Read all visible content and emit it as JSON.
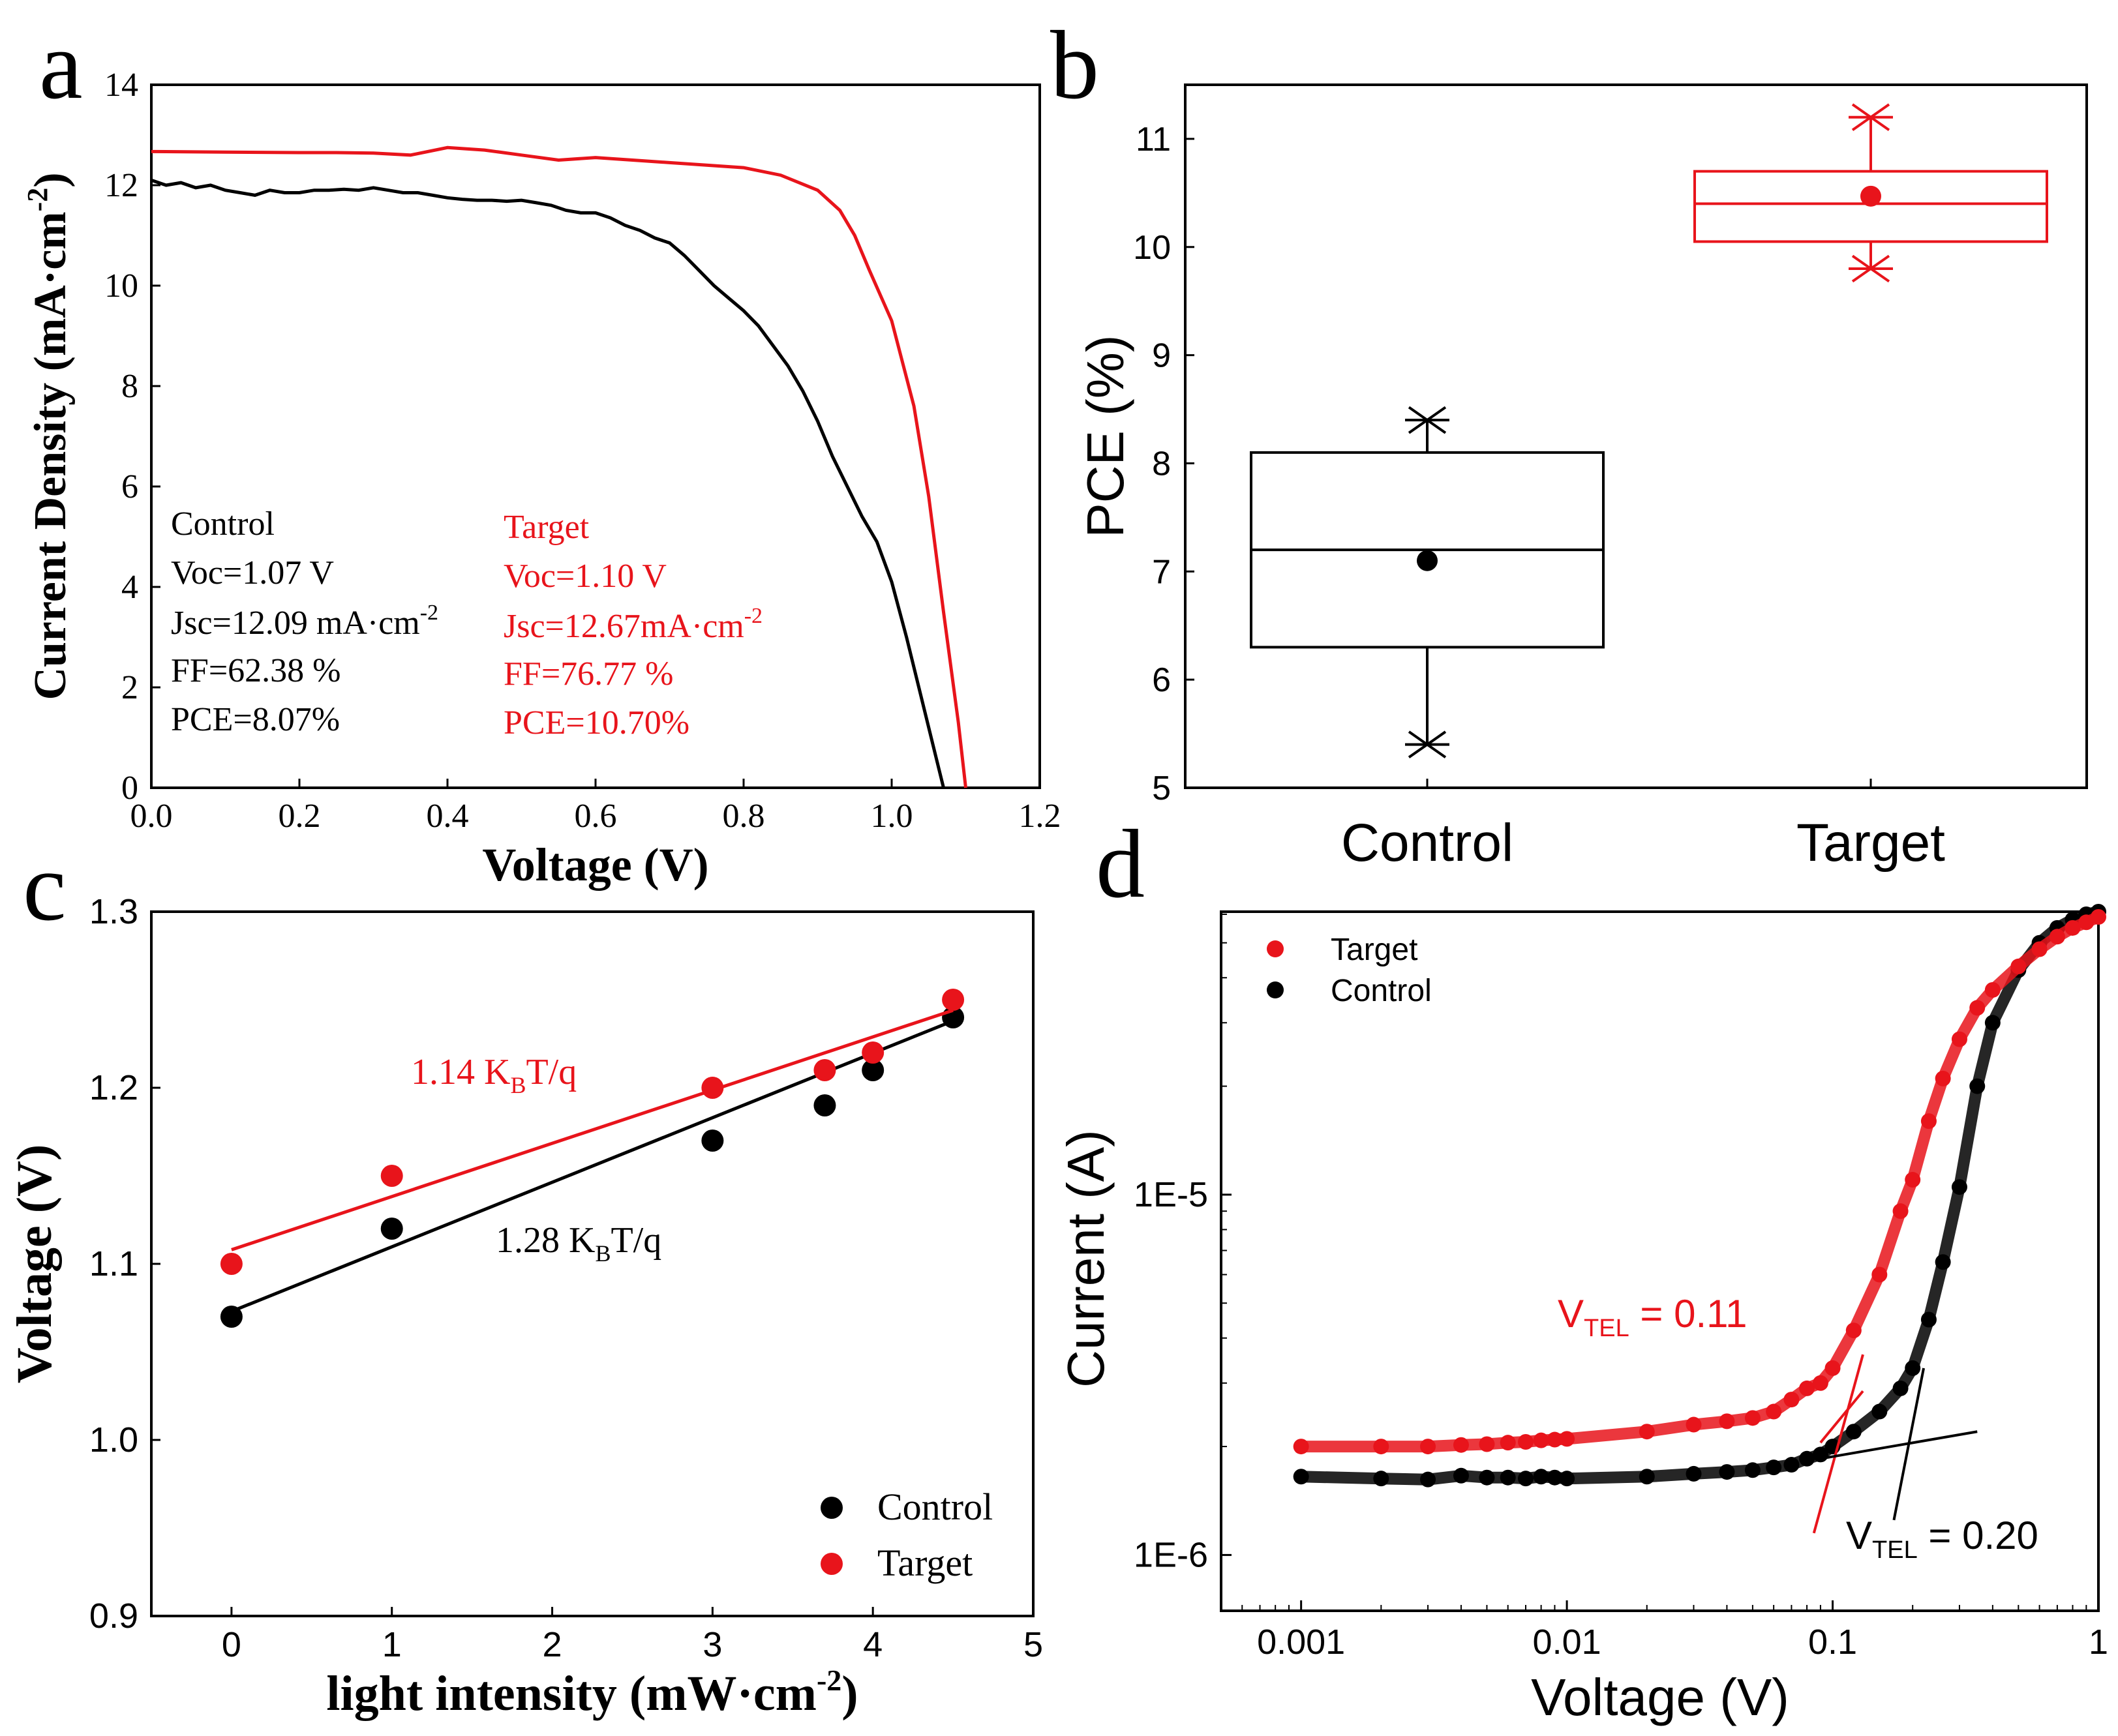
{
  "colors": {
    "control": "#000000",
    "target": "#e8141b"
  },
  "chart_data": [
    {
      "panel": "a",
      "type": "line",
      "xlabel": "Voltage (V)",
      "ylabel": "Current Density (mA·cm-2)",
      "ylabel_main": "Current Density (mA·cm",
      "ylabel_sup": "-2",
      "ylabel_close": ")",
      "xlim": [
        0.0,
        1.2
      ],
      "ylim": [
        0,
        14
      ],
      "xticks": [
        "0.0",
        "0.2",
        "0.4",
        "0.6",
        "0.8",
        "1.0",
        "1.2"
      ],
      "yticks": [
        "0",
        "2",
        "4",
        "6",
        "8",
        "10",
        "12",
        "14"
      ],
      "series": [
        {
          "name": "Control",
          "x": [
            0,
            0.02,
            0.04,
            0.06,
            0.08,
            0.1,
            0.12,
            0.14,
            0.16,
            0.18,
            0.2,
            0.22,
            0.24,
            0.26,
            0.28,
            0.3,
            0.32,
            0.34,
            0.36,
            0.38,
            0.4,
            0.42,
            0.44,
            0.46,
            0.48,
            0.5,
            0.52,
            0.54,
            0.56,
            0.58,
            0.6,
            0.62,
            0.64,
            0.66,
            0.68,
            0.7,
            0.72,
            0.74,
            0.76,
            0.78,
            0.8,
            0.82,
            0.84,
            0.86,
            0.88,
            0.9,
            0.92,
            0.94,
            0.96,
            0.98,
            1.0,
            1.02,
            1.04,
            1.06,
            1.07
          ],
          "y": [
            12.1,
            12.0,
            12.05,
            11.95,
            12.0,
            11.9,
            11.85,
            11.8,
            11.9,
            11.85,
            11.85,
            11.9,
            11.9,
            11.92,
            11.9,
            11.95,
            11.9,
            11.85,
            11.85,
            11.8,
            11.75,
            11.72,
            11.7,
            11.7,
            11.68,
            11.7,
            11.65,
            11.6,
            11.5,
            11.45,
            11.45,
            11.35,
            11.2,
            11.1,
            10.95,
            10.85,
            10.6,
            10.3,
            10.0,
            9.75,
            9.5,
            9.2,
            8.8,
            8.4,
            7.9,
            7.3,
            6.6,
            6.0,
            5.4,
            4.9,
            4.1,
            3.0,
            1.8,
            0.6,
            0.0
          ]
        },
        {
          "name": "Target",
          "x": [
            0,
            0.1,
            0.2,
            0.25,
            0.3,
            0.35,
            0.4,
            0.45,
            0.5,
            0.55,
            0.6,
            0.65,
            0.7,
            0.75,
            0.8,
            0.85,
            0.9,
            0.93,
            0.95,
            0.97,
            1.0,
            1.03,
            1.05,
            1.07,
            1.09,
            1.1
          ],
          "y": [
            12.67,
            12.66,
            12.65,
            12.65,
            12.64,
            12.6,
            12.75,
            12.7,
            12.6,
            12.5,
            12.55,
            12.5,
            12.45,
            12.4,
            12.35,
            12.2,
            11.9,
            11.5,
            11.0,
            10.3,
            9.3,
            7.6,
            5.8,
            3.5,
            1.3,
            0.0
          ]
        }
      ],
      "annotations": {
        "control": {
          "title": "Control",
          "voc": "Voc=1.07 V",
          "jsc": "Jsc=12.09 mA·cm",
          "jsc_sup": "-2",
          "ff": "FF=62.38 %",
          "pce": "PCE=8.07%"
        },
        "target": {
          "title": "Target",
          "voc": "Voc=1.10 V",
          "jsc": "Jsc=12.67mA·cm",
          "jsc_sup": "-2",
          "ff": "FF=76.77 %",
          "pce": "PCE=10.70%"
        }
      }
    },
    {
      "panel": "b",
      "type": "box",
      "ylabel": "PCE (%)",
      "ylim": [
        5,
        11.5
      ],
      "yticks": [
        "5",
        "6",
        "7",
        "8",
        "9",
        "10",
        "11"
      ],
      "categories": [
        "Control",
        "Target"
      ],
      "boxes": [
        {
          "name": "Control",
          "min": 5.4,
          "q1": 6.3,
          "median": 7.2,
          "mean": 7.1,
          "q3": 8.1,
          "max": 8.4
        },
        {
          "name": "Target",
          "min": 9.8,
          "q1": 10.05,
          "median": 10.4,
          "mean": 10.47,
          "q3": 10.7,
          "max": 11.2
        }
      ]
    },
    {
      "panel": "c",
      "type": "scatter",
      "xlabel": "light intensity (mW·cm-2)",
      "xlabel_main": "light intensity (mW·cm",
      "xlabel_sup": "-2",
      "xlabel_close": ")",
      "ylabel": "Voltage (V)",
      "xlim": [
        -0.5,
        5
      ],
      "ylim": [
        0.9,
        1.3
      ],
      "xticks": [
        "0",
        "1",
        "2",
        "3",
        "4",
        "5"
      ],
      "yticks": [
        "0.9",
        "1.0",
        "1.1",
        "1.2",
        "1.3"
      ],
      "legend": "bottom-right",
      "series": [
        {
          "name": "Control",
          "x": [
            0,
            1,
            3,
            3.7,
            4,
            4.5
          ],
          "y": [
            1.07,
            1.12,
            1.17,
            1.19,
            1.21,
            1.24
          ],
          "fit": [
            1.073,
            1.238
          ]
        },
        {
          "name": "Target",
          "x": [
            0,
            1,
            3,
            3.7,
            4,
            4.5
          ],
          "y": [
            1.1,
            1.15,
            1.2,
            1.21,
            1.22,
            1.25
          ],
          "fit": [
            1.108,
            1.244
          ]
        }
      ],
      "fit_labels": {
        "target": {
          "main": "1.14 K",
          "sub": "B",
          "tail": "T/q"
        },
        "control": {
          "main": "1.28 K",
          "sub": "B",
          "tail": "T/q"
        }
      }
    },
    {
      "panel": "d",
      "type": "scatter",
      "xscale": "log",
      "yscale": "log",
      "xlabel": "Voltage (V)",
      "ylabel": "Current (A)",
      "xlim": [
        0.0005,
        1
      ],
      "ylim": [
        7e-07,
        6.1e-05
      ],
      "xticks": [
        "0.001",
        "0.01",
        "0.1",
        "1"
      ],
      "yticks": [
        "1E-6",
        "1E-5"
      ],
      "legend": "top-left",
      "series": [
        {
          "name": "Target",
          "x": [
            0.001,
            0.002,
            0.003,
            0.004,
            0.005,
            0.006,
            0.007,
            0.008,
            0.009,
            0.01,
            0.02,
            0.03,
            0.04,
            0.05,
            0.06,
            0.07,
            0.08,
            0.09,
            0.1,
            0.12,
            0.15,
            0.18,
            0.2,
            0.23,
            0.26,
            0.3,
            0.35,
            0.4,
            0.5,
            0.6,
            0.7,
            0.8,
            0.9,
            1.0
          ],
          "y": [
            2e-06,
            2e-06,
            2e-06,
            2.02e-06,
            2.03e-06,
            2.05e-06,
            2.06e-06,
            2.08e-06,
            2.09e-06,
            2.1e-06,
            2.2e-06,
            2.3e-06,
            2.35e-06,
            2.4e-06,
            2.5e-06,
            2.7e-06,
            2.9e-06,
            3e-06,
            3.3e-06,
            4.2e-06,
            6e-06,
            9e-06,
            1.1e-05,
            1.6e-05,
            2.1e-05,
            2.7e-05,
            3.3e-05,
            3.7e-05,
            4.3e-05,
            4.8e-05,
            5.2e-05,
            5.5e-05,
            5.7e-05,
            5.9e-05
          ]
        },
        {
          "name": "Control",
          "x": [
            0.001,
            0.002,
            0.003,
            0.004,
            0.005,
            0.006,
            0.007,
            0.008,
            0.009,
            0.01,
            0.02,
            0.03,
            0.04,
            0.05,
            0.06,
            0.07,
            0.08,
            0.09,
            0.1,
            0.12,
            0.15,
            0.18,
            0.2,
            0.23,
            0.26,
            0.3,
            0.35,
            0.4,
            0.5,
            0.6,
            0.7,
            0.8,
            0.9,
            1.0
          ],
          "y": [
            1.65e-06,
            1.63e-06,
            1.62e-06,
            1.66e-06,
            1.64e-06,
            1.64e-06,
            1.63e-06,
            1.65e-06,
            1.64e-06,
            1.63e-06,
            1.65e-06,
            1.68e-06,
            1.7e-06,
            1.72e-06,
            1.75e-06,
            1.78e-06,
            1.85e-06,
            1.9e-06,
            2e-06,
            2.2e-06,
            2.5e-06,
            2.9e-06,
            3.3e-06,
            4.5e-06,
            6.5e-06,
            1.05e-05,
            2e-05,
            3e-05,
            4.2e-05,
            5e-05,
            5.5e-05,
            5.8e-05,
            6e-05,
            6.1e-05
          ]
        }
      ],
      "tangent_lines": [
        {
          "series": "Target",
          "x": [
            0.085,
            0.13
          ],
          "y": [
            1.15e-06,
            3.6e-06
          ]
        },
        {
          "series": "Target",
          "x": [
            0.09,
            0.13
          ],
          "y": [
            2.05e-06,
            2.85e-06
          ]
        },
        {
          "series": "Control",
          "x": [
            0.09,
            0.35
          ],
          "y": [
            1.85e-06,
            2.2e-06
          ]
        },
        {
          "series": "Control",
          "x": [
            0.17,
            0.22
          ],
          "y": [
            1.25e-06,
            3.3e-06
          ]
        }
      ],
      "annotations": {
        "target": {
          "main": "V",
          "sub": "TEL",
          "tail": " = 0.11"
        },
        "control": {
          "main": "V",
          "sub": "TEL",
          "tail": " = 0.20"
        }
      }
    }
  ],
  "panel_labels": [
    "a",
    "b",
    "c",
    "d"
  ]
}
